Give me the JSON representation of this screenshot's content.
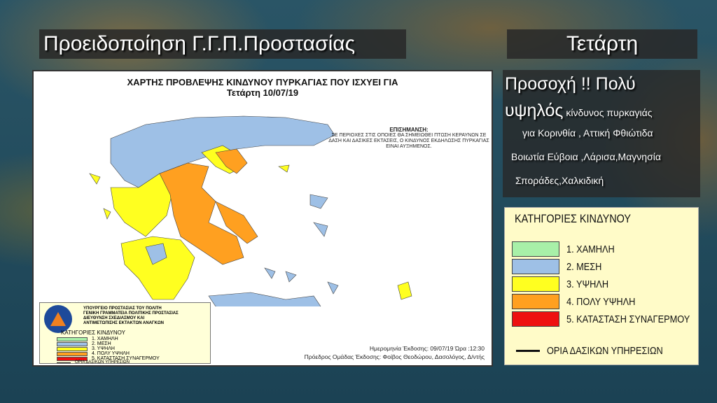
{
  "header": {
    "title": "Προειδοποίηση Γ.Γ.Π.Προστασίας",
    "day": "Τετάρτη"
  },
  "map": {
    "title_line1": "ΧΑΡΤΗΣ ΠΡΟΒΛΕΨΗΣ ΚΙΝΔΥΝΟΥ ΠΥΡΚΑΓΙΑΣ ΠΟΥ ΙΣΧΥΕΙ ΓΙΑ",
    "title_line2": "Τετάρτη 10/07/19",
    "notice_title": "ΕΠΙΣΗΜΑΝΣΗ:",
    "notice_text": "ΣΕ ΠΕΡΙΟΧΕΣ ΣΤΙΣ ΟΠΟΙΕΣ ΘΑ ΣΗΜΕΙΩΘΕΙ ΠΤΩΣΗ ΚΕΡΑΥΝΩΝ ΣΕ ΔΑΣΗ ΚΑΙ ΔΑΣΙΚΕΣ ΕΚΤΑΣΕΙΣ, Ο ΚΙΝΔΥΝΟΣ ΕΚΔΗΛΩΣΗΣ ΠΥΡΚΑΓΙΑΣ ΕΙΝΑΙ ΑΥΞΗΜΕΝΟΣ.",
    "org_lines": [
      "ΥΠΟΥΡΓΕΙΟ ΠΡΟΣΤΑΣΙΑΣ ΤΟΥ ΠΟΛΙΤΗ",
      "ΓΕΝΙΚΗ ΓΡΑΜΜΑΤΕΙΑ ΠΟΛΙΤΙΚΗΣ ΠΡΟΣΤΑΣΙΑΣ",
      "ΔΙΕΥΘΥΝΣΗ ΣΧΕΔΙΑΣΜΟΥ ΚΑΙ",
      "ΑΝΤΙΜΕΤΩΠΙΣΗΣ ΕΚΤΑΚΤΩΝ ΑΝΑΓΚΩΝ"
    ],
    "issued_date": "Ημερομηνία Έκδοσης: 09/07/19  Ώρα :12:30",
    "issued_by": "Πρόεδρος Ομάδας Έκδοσης: Φοίβος Θεοδώρου,  Δασολόγος, Δ/ντής"
  },
  "warning": {
    "line1": "Προσοχή !!    Πολύ",
    "line2_big": "υψηλός",
    "line2_small": " κίνδυνος πυρκαγιάς",
    "line3": "για Κορινθία , Αττική Φθιώτιδα",
    "line4": "Βοιωτία Εύβοια ,Λάρισα,Μαγνησία",
    "line5": "Σποράδες,Χαλκιδική"
  },
  "legend": {
    "title": "ΚΑΤΗΓΟΡΙΕΣ ΚΙΝΔΥΝΟΥ",
    "categories": [
      {
        "label": "1. ΧΑΜΗΛΗ",
        "color": "#a8f0a8"
      },
      {
        "label": "2. ΜΕΣΗ",
        "color": "#9ec0e6"
      },
      {
        "label": "3. ΥΨΗΛΗ",
        "color": "#ffff20"
      },
      {
        "label": "4. ΠΟΛΥ ΥΨΗΛΗ",
        "color": "#ffa020"
      },
      {
        "label": "5. ΚΑΤΑΣΤΑΣΗ ΣΥΝΑΓΕΡΜΟΥ",
        "color": "#ee1010"
      }
    ],
    "boundary_label": "ΟΡΙΑ ΔΑΣΙΚΩΝ ΥΠΗΡΕΣΙΩΝ"
  }
}
